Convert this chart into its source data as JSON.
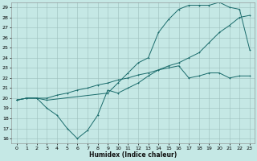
{
  "xlabel": "Humidex (Indice chaleur)",
  "bg_color": "#c5e8e5",
  "grid_color": "#9dbfbc",
  "line_color": "#1a6b6b",
  "xlim": [
    -0.5,
    23.5
  ],
  "ylim": [
    15.5,
    29.5
  ],
  "xticks": [
    0,
    1,
    2,
    3,
    4,
    5,
    6,
    7,
    8,
    9,
    10,
    11,
    12,
    13,
    14,
    15,
    16,
    17,
    18,
    19,
    20,
    21,
    22,
    23
  ],
  "yticks": [
    16,
    17,
    18,
    19,
    20,
    21,
    22,
    23,
    24,
    25,
    26,
    27,
    28,
    29
  ],
  "line1_x": [
    0,
    1,
    2,
    3,
    4,
    5,
    6,
    7,
    8,
    9,
    10,
    11,
    12,
    13,
    14,
    15,
    16,
    17,
    18,
    19,
    20,
    21,
    22,
    23
  ],
  "line1_y": [
    19.8,
    20.0,
    20.0,
    19.0,
    18.3,
    17.0,
    16.0,
    16.8,
    18.3,
    20.8,
    20.5,
    21.0,
    21.5,
    22.2,
    22.8,
    23.0,
    23.2,
    22.0,
    22.2,
    22.5,
    22.5,
    22.0,
    22.2,
    22.2
  ],
  "line2_x": [
    0,
    1,
    2,
    3,
    4,
    5,
    6,
    7,
    8,
    9,
    10,
    11,
    12,
    13,
    14,
    15,
    16,
    17,
    18,
    19,
    20,
    21,
    22,
    23
  ],
  "line2_y": [
    19.8,
    20.0,
    20.0,
    20.0,
    20.3,
    20.5,
    20.8,
    21.0,
    21.3,
    21.5,
    21.8,
    22.0,
    22.3,
    22.5,
    22.8,
    23.2,
    23.5,
    24.0,
    24.5,
    25.5,
    26.5,
    27.2,
    28.0,
    28.2
  ],
  "line3_x": [
    0,
    1,
    2,
    3,
    9,
    10,
    11,
    12,
    13,
    14,
    15,
    16,
    17,
    18,
    19,
    20,
    21,
    22,
    23
  ],
  "line3_y": [
    19.8,
    20.0,
    20.0,
    19.8,
    20.5,
    21.5,
    22.5,
    23.5,
    24.0,
    26.5,
    27.8,
    28.8,
    29.2,
    29.2,
    29.2,
    29.5,
    29.0,
    28.8,
    24.8
  ]
}
